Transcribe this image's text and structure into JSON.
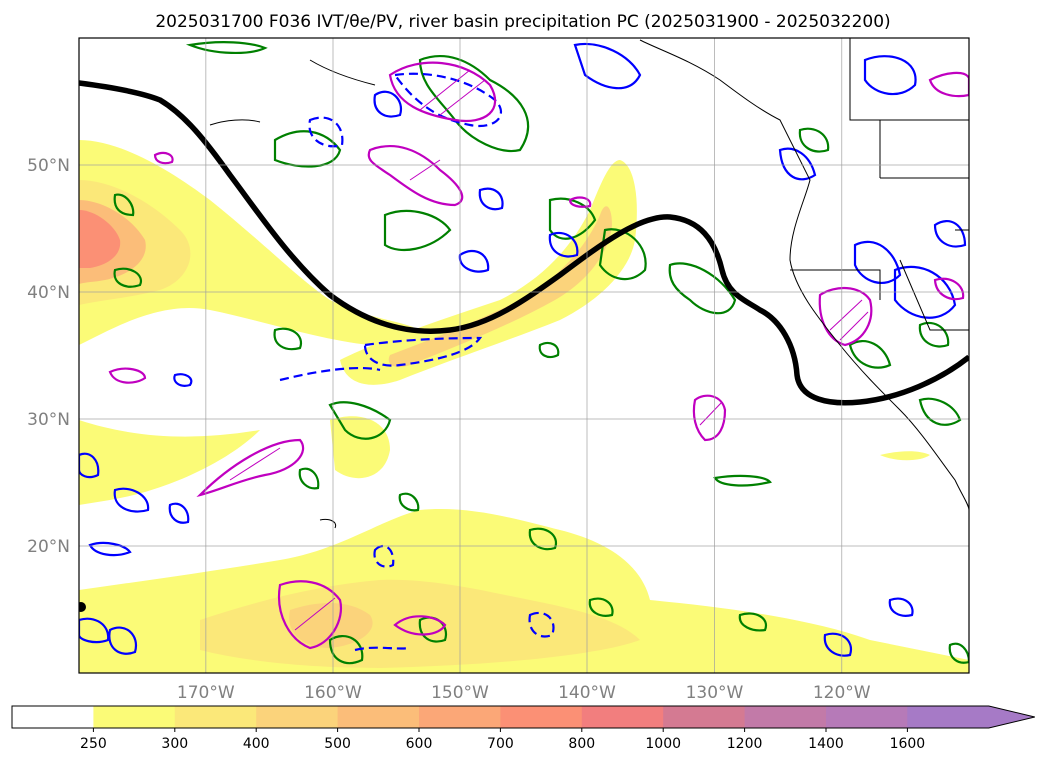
{
  "figure": {
    "title": "2025031700 F036 IVT/θe/PV, river basin precipitation PC (2025031900 - 2025032200)",
    "lat_labels": [
      "50°N",
      "40°N",
      "30°N",
      "20°N"
    ],
    "lon_labels": [
      "170°W",
      "160°W",
      "150°W",
      "140°W",
      "130°W",
      "120°W"
    ]
  },
  "colorbar": {
    "labels": [
      "250",
      "300",
      "400",
      "500",
      "600",
      "700",
      "800",
      "1000",
      "1200",
      "1400",
      "1600"
    ],
    "colors": [
      "#ffffff",
      "#fbfb77",
      "#fbe879",
      "#fbd37b",
      "#fbbd79",
      "#fba777",
      "#fb9075",
      "#f27e7e",
      "#d47a92",
      "#c27aa8",
      "#b67ab8",
      "#a67ac6"
    ],
    "extend": "max"
  },
  "chart_data": {
    "type": "map",
    "title": "2025031700 F036 IVT/θe/PV, river basin precipitation PC (2025031900 - 2025032200)",
    "projection": "PlateCarree",
    "lon_range": [
      -180,
      -110
    ],
    "lat_range": [
      10,
      60
    ],
    "lat_ticks": [
      20,
      30,
      40,
      50
    ],
    "lon_ticks": [
      -170,
      -160,
      -150,
      -140,
      -130,
      -120
    ],
    "grid": true,
    "filled_field": "IVT",
    "levels": [
      250,
      300,
      400,
      500,
      600,
      700,
      800,
      1000,
      1200,
      1400,
      1600
    ],
    "features": {
      "ivt_maxima": [
        {
          "region": "central North Pacific near 45°N 177°W",
          "level": ">=800"
        },
        {
          "region": "atmospheric river band 35–48°N, 160–138°W",
          "level": "300–600"
        },
        {
          "region": "subtropical band 12–22°N",
          "level": "250–500"
        }
      ],
      "thick_black_contour": "single wavy line from 56°N 180°W trough near 37°N 151°W ridge near 46°N 134°W trough near 31°N 121°W",
      "contour_colors": {
        "green": "#008000",
        "blue": "#0000ff",
        "magenta": "#c000c0",
        "black": "#000000"
      }
    }
  }
}
